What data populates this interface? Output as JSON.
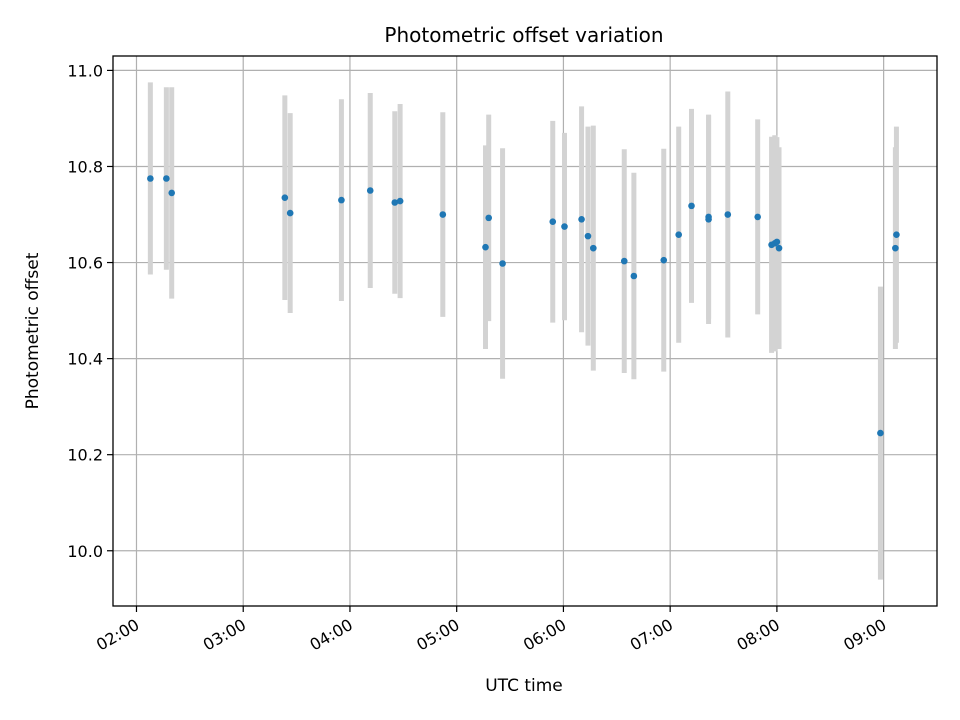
{
  "chart_data": {
    "type": "scatter",
    "title": "Photometric offset variation",
    "xlabel": "UTC time",
    "ylabel": "Photometric offset",
    "grid": true,
    "x_tick_labels": [
      "02:00",
      "03:00",
      "04:00",
      "05:00",
      "06:00",
      "07:00",
      "08:00",
      "09:00"
    ],
    "x_tick_hours": [
      2,
      3,
      4,
      5,
      6,
      7,
      8,
      9
    ],
    "xlim_hours": [
      1.78,
      9.5
    ],
    "y_ticks": [
      10.0,
      10.2,
      10.4,
      10.6,
      10.8,
      11.0
    ],
    "y_tick_labels": [
      "10.0",
      "10.2",
      "10.4",
      "10.6",
      "10.8",
      "11.0"
    ],
    "ylim": [
      9.885,
      11.03
    ],
    "point_color": "#1f77b4",
    "errorbar_color": "#d3d3d3",
    "points": [
      {
        "t": 2.13,
        "y": 10.775,
        "err": 0.2
      },
      {
        "t": 2.28,
        "y": 10.775,
        "err": 0.19
      },
      {
        "t": 2.33,
        "y": 10.745,
        "err": 0.22
      },
      {
        "t": 3.39,
        "y": 10.735,
        "err": 0.213
      },
      {
        "t": 3.44,
        "y": 10.703,
        "err": 0.208
      },
      {
        "t": 3.92,
        "y": 10.73,
        "err": 0.21
      },
      {
        "t": 4.19,
        "y": 10.75,
        "err": 0.203
      },
      {
        "t": 4.42,
        "y": 10.725,
        "err": 0.19
      },
      {
        "t": 4.47,
        "y": 10.728,
        "err": 0.202
      },
      {
        "t": 4.87,
        "y": 10.7,
        "err": 0.213
      },
      {
        "t": 5.27,
        "y": 10.632,
        "err": 0.212
      },
      {
        "t": 5.3,
        "y": 10.693,
        "err": 0.215
      },
      {
        "t": 5.43,
        "y": 10.598,
        "err": 0.24
      },
      {
        "t": 5.9,
        "y": 10.685,
        "err": 0.21
      },
      {
        "t": 6.01,
        "y": 10.675,
        "err": 0.195
      },
      {
        "t": 6.17,
        "y": 10.69,
        "err": 0.235
      },
      {
        "t": 6.23,
        "y": 10.655,
        "err": 0.228
      },
      {
        "t": 6.28,
        "y": 10.63,
        "err": 0.255
      },
      {
        "t": 6.57,
        "y": 10.603,
        "err": 0.233
      },
      {
        "t": 6.66,
        "y": 10.572,
        "err": 0.215
      },
      {
        "t": 6.94,
        "y": 10.605,
        "err": 0.232
      },
      {
        "t": 7.08,
        "y": 10.658,
        "err": 0.225
      },
      {
        "t": 7.2,
        "y": 10.718,
        "err": 0.202
      },
      {
        "t": 7.36,
        "y": 10.695,
        "err": 0.212
      },
      {
        "t": 7.36,
        "y": 10.69,
        "err": 0.218
      },
      {
        "t": 7.54,
        "y": 10.7,
        "err": 0.256
      },
      {
        "t": 7.82,
        "y": 10.695,
        "err": 0.203
      },
      {
        "t": 7.95,
        "y": 10.637,
        "err": 0.225
      },
      {
        "t": 7.98,
        "y": 10.64,
        "err": 0.225
      },
      {
        "t": 8.0,
        "y": 10.643,
        "err": 0.218
      },
      {
        "t": 8.02,
        "y": 10.63,
        "err": 0.21
      },
      {
        "t": 8.97,
        "y": 10.245,
        "err": 0.305
      },
      {
        "t": 9.11,
        "y": 10.63,
        "err": 0.21
      },
      {
        "t": 9.12,
        "y": 10.658,
        "err": 0.225
      }
    ]
  }
}
